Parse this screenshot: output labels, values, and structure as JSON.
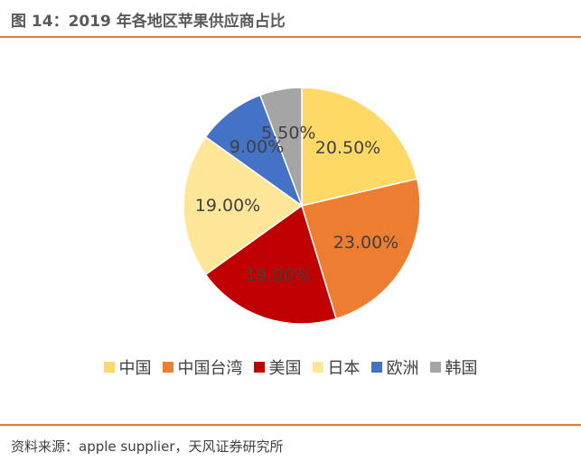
{
  "title": "图 14：2019 年各地区苹果供应商占比",
  "source": "资料来源：apple supplier，天风证券研究所",
  "chart_data": {
    "type": "pie",
    "categories": [
      "中国",
      "中国台湾",
      "美国",
      "日本",
      "欧洲",
      "韩国"
    ],
    "values": [
      20.5,
      23.0,
      19.0,
      19.0,
      9.0,
      5.5
    ],
    "data_labels": [
      "20.50%",
      "23.00%",
      "19.00%",
      "19.00%",
      "9.00%",
      "5.50%"
    ],
    "colors": [
      "#ffd966",
      "#ed7d31",
      "#c00000",
      "#ffe699",
      "#4472c4",
      "#a5a5a5"
    ],
    "legend_position": "bottom",
    "start_angle_deg": 0,
    "direction": "clockwise"
  }
}
